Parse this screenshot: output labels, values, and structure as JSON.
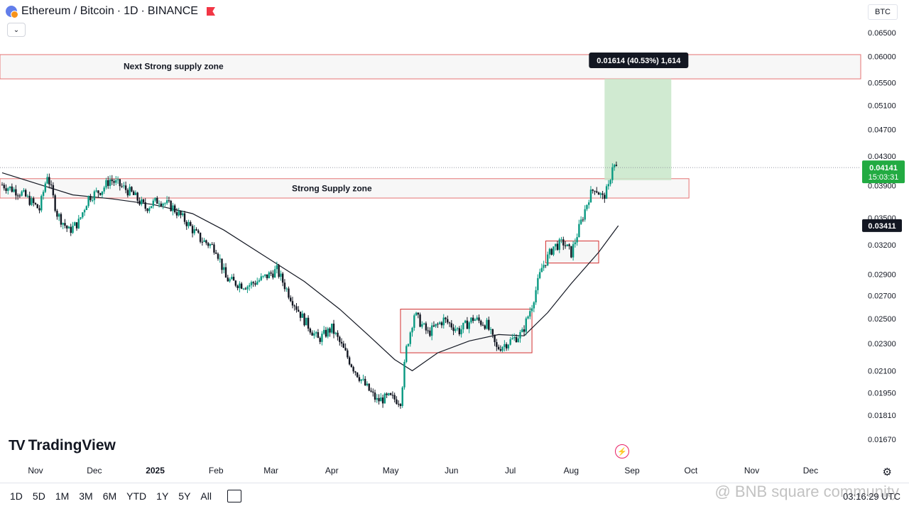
{
  "header": {
    "pair": "Ethereum / Bitcoin",
    "sep": "·",
    "interval": "1D",
    "exchange": "BINANCE"
  },
  "currency": "BTC",
  "annotations": {
    "next_zone": "Next Strong supply zone",
    "strong_zone": "Strong Supply zone",
    "measure_label": "0.01614 (40.53%) 1,614",
    "last_price": "0.04141",
    "countdown": "15:03:31",
    "ma_price": "0.03411"
  },
  "colors": {
    "up": "#089981",
    "down": "#131722",
    "ma": "#131722",
    "zone_border": "#e57373",
    "measure_fill": "#c8e6c9",
    "last_price_bg": "#22ab42"
  },
  "logo": "TradingView",
  "toolbar": {
    "timeframes": [
      "1D",
      "5D",
      "1M",
      "3M",
      "6M",
      "YTD",
      "1Y",
      "5Y",
      "All"
    ],
    "clock": "03:16:29 UTC"
  },
  "watermark": "@ BNB square community",
  "chart_data": {
    "type": "candlestick",
    "title": "Ethereum / Bitcoin · 1D · BINANCE",
    "y_scale": "log",
    "ylim": [
      0.0163,
      0.068
    ],
    "x_ticks": [
      "Nov",
      "Dec",
      "2025",
      "Feb",
      "Mar",
      "Apr",
      "May",
      "Jun",
      "Jul",
      "Aug",
      "Sep",
      "Oct",
      "Nov",
      "Dec"
    ],
    "y_ticks": [
      "0.06500",
      "0.06000",
      "0.05500",
      "0.05100",
      "0.04700",
      "0.04300",
      "0.03900",
      "0.03500",
      "0.03200",
      "0.02900",
      "0.02700",
      "0.02500",
      "0.02300",
      "0.02100",
      "0.01950",
      "0.01810",
      "0.01670"
    ],
    "price_path": [
      [
        "2024-10-15",
        0.0391
      ],
      [
        "2024-10-25",
        0.038
      ],
      [
        "2024-11-03",
        0.036
      ],
      [
        "2024-11-07",
        0.0405
      ],
      [
        "2024-11-12",
        0.0355
      ],
      [
        "2024-11-18",
        0.0335
      ],
      [
        "2024-11-23",
        0.0345
      ],
      [
        "2024-11-28",
        0.0375
      ],
      [
        "2024-12-05",
        0.0385
      ],
      [
        "2024-12-09",
        0.0398
      ],
      [
        "2024-12-14",
        0.039
      ],
      [
        "2024-12-20",
        0.038
      ],
      [
        "2024-12-27",
        0.0362
      ],
      [
        "2025-01-03",
        0.0372
      ],
      [
        "2025-01-10",
        0.0362
      ],
      [
        "2025-01-17",
        0.0345
      ],
      [
        "2025-01-24",
        0.0326
      ],
      [
        "2025-02-01",
        0.0316
      ],
      [
        "2025-02-06",
        0.0286
      ],
      [
        "2025-02-10",
        0.0282
      ],
      [
        "2025-02-17",
        0.0279
      ],
      [
        "2025-02-25",
        0.0286
      ],
      [
        "2025-03-04",
        0.0294
      ],
      [
        "2025-03-10",
        0.0272
      ],
      [
        "2025-03-17",
        0.0251
      ],
      [
        "2025-03-25",
        0.0233
      ],
      [
        "2025-04-01",
        0.0242
      ],
      [
        "2025-04-06",
        0.0228
      ],
      [
        "2025-04-12",
        0.0212
      ],
      [
        "2025-04-18",
        0.02
      ],
      [
        "2025-04-24",
        0.019
      ],
      [
        "2025-04-30",
        0.0192
      ],
      [
        "2025-05-06",
        0.019
      ],
      [
        "2025-05-09",
        0.0226
      ],
      [
        "2025-05-13",
        0.0254
      ],
      [
        "2025-05-20",
        0.0238
      ],
      [
        "2025-05-28",
        0.0249
      ],
      [
        "2025-06-05",
        0.024
      ],
      [
        "2025-06-12",
        0.025
      ],
      [
        "2025-06-19",
        0.0245
      ],
      [
        "2025-06-24",
        0.0226
      ],
      [
        "2025-07-01",
        0.0232
      ],
      [
        "2025-07-07",
        0.0238
      ],
      [
        "2025-07-12",
        0.0262
      ],
      [
        "2025-07-17",
        0.0296
      ],
      [
        "2025-07-23",
        0.0318
      ],
      [
        "2025-07-28",
        0.0322
      ],
      [
        "2025-08-01",
        0.0311
      ],
      [
        "2025-08-04",
        0.0331
      ],
      [
        "2025-08-10",
        0.0375
      ],
      [
        "2025-08-13",
        0.0388
      ],
      [
        "2025-08-17",
        0.0374
      ],
      [
        "2025-08-20",
        0.0387
      ],
      [
        "2025-08-22",
        0.0418
      ],
      [
        "2025-08-24",
        0.0414
      ]
    ],
    "ma_path": [
      [
        "2024-10-15",
        0.0407
      ],
      [
        "2024-11-01",
        0.0393
      ],
      [
        "2024-11-20",
        0.0378
      ],
      [
        "2024-12-10",
        0.0373
      ],
      [
        "2024-12-31",
        0.0366
      ],
      [
        "2025-01-20",
        0.0355
      ],
      [
        "2025-02-05",
        0.0336
      ],
      [
        "2025-02-25",
        0.0309
      ],
      [
        "2025-03-18",
        0.0283
      ],
      [
        "2025-04-05",
        0.0258
      ],
      [
        "2025-04-20",
        0.0236
      ],
      [
        "2025-05-03",
        0.0218
      ],
      [
        "2025-05-12",
        0.021
      ],
      [
        "2025-05-25",
        0.0223
      ],
      [
        "2025-06-10",
        0.0232
      ],
      [
        "2025-06-25",
        0.0237
      ],
      [
        "2025-07-08",
        0.0236
      ],
      [
        "2025-07-20",
        0.0255
      ],
      [
        "2025-08-01",
        0.0281
      ],
      [
        "2025-08-15",
        0.0312
      ],
      [
        "2025-08-25",
        0.0341
      ]
    ],
    "zones": [
      {
        "label": "Next Strong supply zone",
        "from_date": "2024-10-10",
        "to_date": "2025-12-31",
        "low": 0.0557,
        "high": 0.0604
      },
      {
        "label": "Strong Supply zone",
        "from_date": "2024-10-10",
        "to_date": "2025-09-30",
        "low": 0.0374,
        "high": 0.0399
      }
    ],
    "boxes": [
      {
        "from_date": "2025-05-06",
        "to_date": "2025-07-12",
        "low": 0.0223,
        "high": 0.0258
      },
      {
        "from_date": "2025-07-19",
        "to_date": "2025-08-15",
        "low": 0.0301,
        "high": 0.0324
      }
    ],
    "measure": {
      "from_date": "2025-08-18",
      "to_date": "2025-09-21",
      "low": 0.0397,
      "high": 0.0557,
      "label": "0.01614 (40.53%) 1,614"
    },
    "last_price": 0.04141,
    "ma_last": 0.03411
  }
}
